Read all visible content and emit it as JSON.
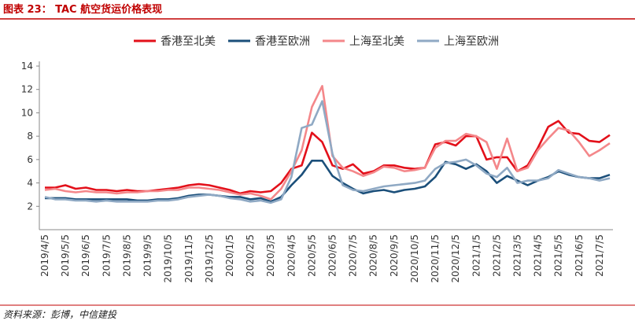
{
  "chart_data": {
    "type": "line",
    "title": "图表 23： TAC 航空货运价格表现",
    "source": "资料来源：彭博，中信建投",
    "categories": [
      "2019/4/5",
      null,
      "2019/5/5",
      null,
      "2019/6/5",
      null,
      "2019/7/5",
      null,
      "2019/8/5",
      null,
      "2019/9/5",
      null,
      "2019/10/5",
      null,
      "2019/11/5",
      null,
      "2019/12/5",
      null,
      "2020/1/5",
      null,
      "2020/2/5",
      null,
      "2020/3/5",
      null,
      "2020/4/5",
      null,
      "2020/5/5",
      null,
      "2020/6/5",
      null,
      "2020/7/5",
      null,
      "2020/8/5",
      null,
      "2020/9/5",
      null,
      "2020/10/5",
      null,
      "2020/11/5",
      null,
      "2020/12/5",
      null,
      "2021/1/5",
      null,
      "2021/2/5",
      null,
      "2021/3/5",
      null,
      "2021/4/5",
      null,
      "2021/5/5",
      null,
      "2021/6/5",
      null,
      "2021/7/5",
      null
    ],
    "series": [
      {
        "name": "香港至北美",
        "color": "#e3101a",
        "values": [
          3.6,
          3.6,
          3.8,
          3.5,
          3.6,
          3.4,
          3.4,
          3.3,
          3.4,
          3.3,
          3.3,
          3.4,
          3.5,
          3.6,
          3.8,
          3.9,
          3.8,
          3.6,
          3.4,
          3.1,
          3.3,
          3.2,
          3.3,
          4.0,
          5.2,
          5.5,
          8.3,
          7.5,
          5.5,
          5.2,
          5.6,
          4.8,
          5.0,
          5.5,
          5.5,
          5.3,
          5.2,
          5.3,
          7.3,
          7.5,
          7.2,
          8.0,
          8.0,
          6.0,
          6.2,
          6.2,
          5.0,
          5.5,
          7.0,
          8.8,
          9.3,
          8.3,
          8.2,
          7.6,
          7.5,
          8.1
        ]
      },
      {
        "name": "香港至欧洲",
        "color": "#1b4f7a",
        "values": [
          2.7,
          2.7,
          2.7,
          2.6,
          2.6,
          2.6,
          2.6,
          2.6,
          2.6,
          2.5,
          2.5,
          2.6,
          2.6,
          2.7,
          2.9,
          3.0,
          3.0,
          2.9,
          2.8,
          2.8,
          2.6,
          2.7,
          2.4,
          2.8,
          3.8,
          4.7,
          5.9,
          5.9,
          4.6,
          4.0,
          3.5,
          3.1,
          3.3,
          3.4,
          3.2,
          3.4,
          3.5,
          3.7,
          4.5,
          5.8,
          5.6,
          5.2,
          5.6,
          5.0,
          4.0,
          4.6,
          4.2,
          3.8,
          4.2,
          4.5,
          5.0,
          4.7,
          4.5,
          4.4,
          4.4,
          4.7
        ]
      },
      {
        "name": "上海至北美",
        "color": "#f4878a",
        "values": [
          3.4,
          3.5,
          3.3,
          3.2,
          3.3,
          3.2,
          3.2,
          3.1,
          3.2,
          3.2,
          3.3,
          3.3,
          3.4,
          3.4,
          3.6,
          3.6,
          3.5,
          3.4,
          3.2,
          3.0,
          3.1,
          2.9,
          2.6,
          3.5,
          5.0,
          6.8,
          10.5,
          12.3,
          6.3,
          5.3,
          5.0,
          4.6,
          4.9,
          5.4,
          5.3,
          5.0,
          5.1,
          5.3,
          7.0,
          7.6,
          7.6,
          8.2,
          8.0,
          7.5,
          5.2,
          7.8,
          5.0,
          5.3,
          6.8,
          7.8,
          8.7,
          8.5,
          7.5,
          6.3,
          6.8,
          7.4
        ]
      },
      {
        "name": "上海至欧洲",
        "color": "#8fa9c4",
        "values": [
          2.8,
          2.6,
          2.6,
          2.5,
          2.5,
          2.4,
          2.5,
          2.4,
          2.4,
          2.4,
          2.4,
          2.5,
          2.5,
          2.6,
          2.8,
          2.9,
          3.0,
          2.9,
          2.7,
          2.6,
          2.4,
          2.5,
          2.3,
          2.6,
          4.5,
          8.7,
          9.0,
          11.0,
          6.5,
          3.8,
          3.4,
          3.3,
          3.5,
          3.7,
          3.8,
          3.9,
          4.0,
          4.2,
          5.2,
          5.7,
          5.8,
          6.0,
          5.5,
          4.8,
          4.5,
          5.3,
          4.0,
          4.2,
          4.2,
          4.4,
          5.1,
          4.8,
          4.5,
          4.4,
          4.2,
          4.4
        ]
      }
    ],
    "ylim": [
      0,
      14
    ],
    "yticks": [
      2,
      4,
      6,
      8,
      10,
      12,
      14
    ],
    "grid": false
  }
}
